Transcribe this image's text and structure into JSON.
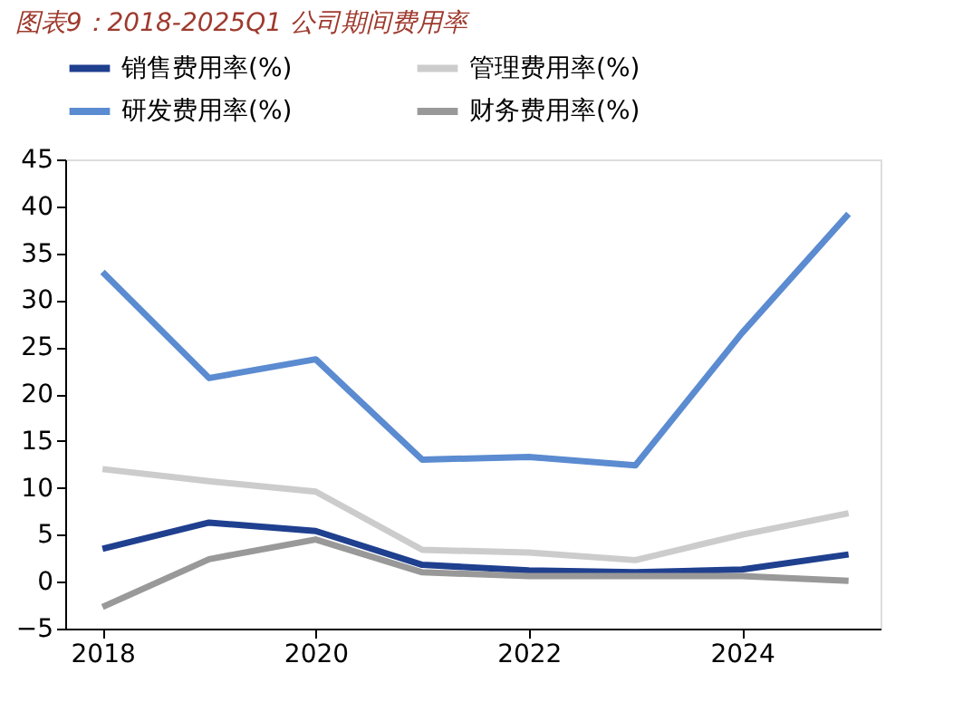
{
  "chart_data": {
    "type": "line",
    "title": "图表9：2018-2025Q1 公司期间费用率",
    "x": [
      2018,
      2019,
      2020,
      2021,
      2022,
      2023,
      2024,
      2025
    ],
    "series": [
      {
        "name": "销售费用率(%)",
        "color": "#1f3f8f",
        "values": [
          3.5,
          6.3,
          5.4,
          1.8,
          1.2,
          1.0,
          1.3,
          2.9
        ]
      },
      {
        "name": "管理费用率(%)",
        "color": "#cccccc",
        "values": [
          12,
          10.7,
          9.6,
          3.4,
          3.1,
          2.3,
          5,
          7.3
        ]
      },
      {
        "name": "研发费用率(%)",
        "color": "#5b8bd0",
        "values": [
          33,
          21.7,
          23.7,
          13,
          13.3,
          12.4,
          26.5,
          39.2
        ]
      },
      {
        "name": "财务费用率(%)",
        "color": "#999999",
        "values": [
          -2.7,
          2.4,
          4.5,
          1.0,
          0.6,
          0.6,
          0.6,
          0.1
        ]
      }
    ],
    "xlim": [
      2017.65,
      2025.3
    ],
    "xticks": [
      2018,
      2020,
      2022,
      2024
    ],
    "ylim": [
      -5,
      45
    ],
    "yticks": [
      -5,
      0,
      5,
      10,
      15,
      20,
      25,
      30,
      35,
      40,
      45
    ],
    "grid": false,
    "legend": "top",
    "marker": "none",
    "line_style": "solid"
  }
}
